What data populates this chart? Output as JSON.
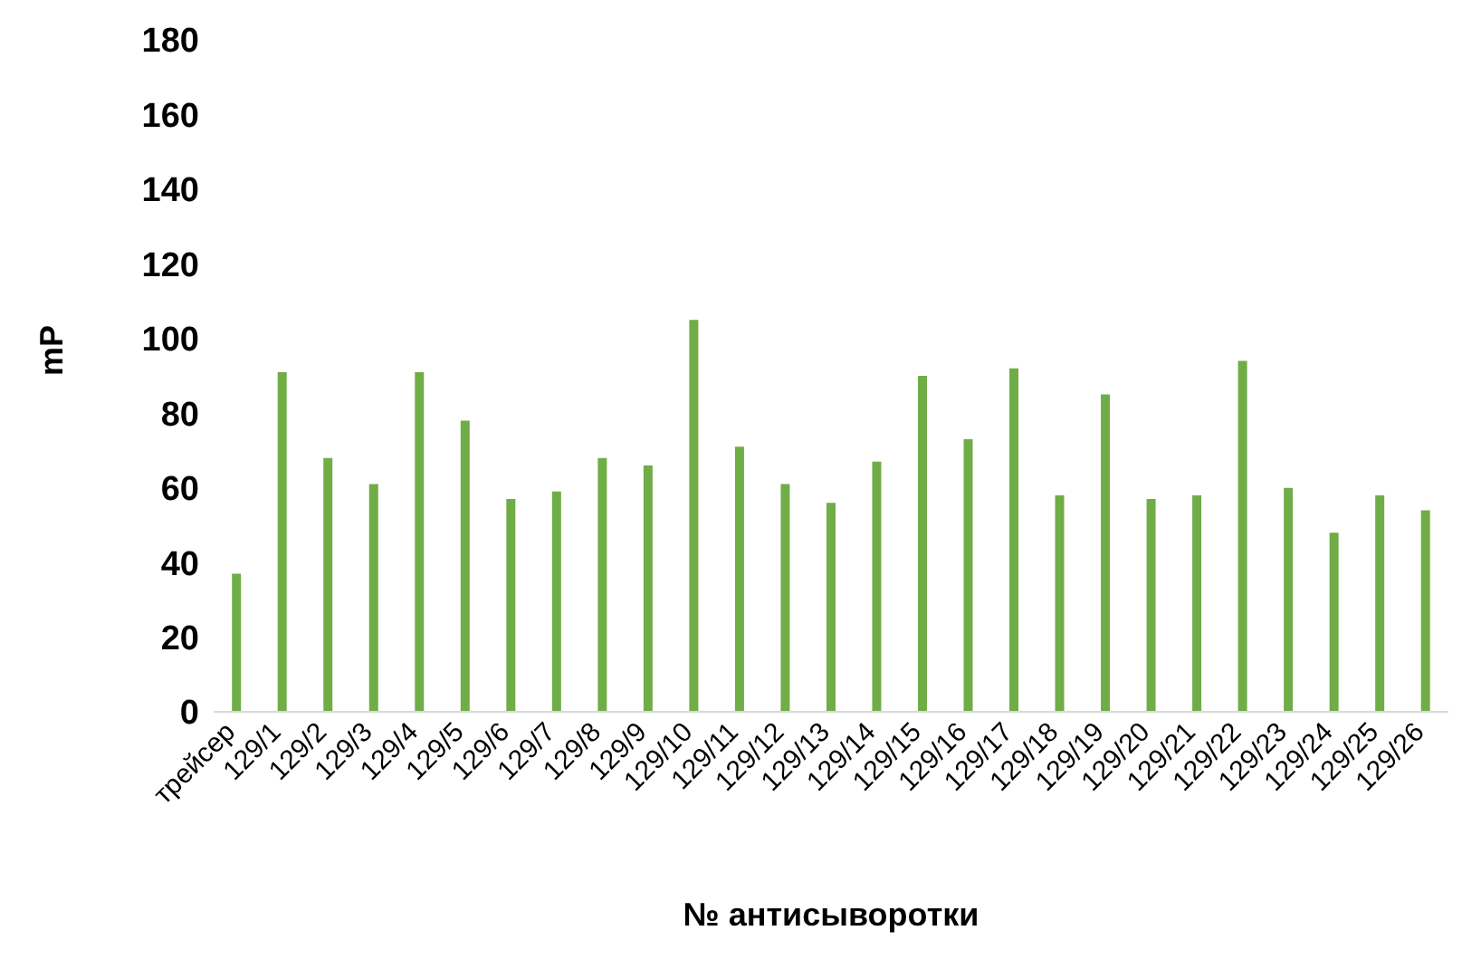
{
  "chart_data": {
    "type": "bar",
    "xlabel": "№ антисыворотки",
    "ylabel": "mP",
    "categories": [
      "трейсер",
      "129/1",
      "129/2",
      "129/3",
      "129/4",
      "129/5",
      "129/6",
      "129/7",
      "129/8",
      "129/9",
      "129/10",
      "129/11",
      "129/12",
      "129/13",
      "129/14",
      "129/15",
      "129/16",
      "129/17",
      "129/18",
      "129/19",
      "129/20",
      "129/21",
      "129/22",
      "129/23",
      "129/24",
      "129/25",
      "129/26"
    ],
    "values": [
      37,
      91,
      68,
      61,
      91,
      78,
      57,
      59,
      68,
      66,
      105,
      71,
      61,
      56,
      67,
      90,
      73,
      92,
      58,
      85,
      57,
      58,
      94,
      60,
      48,
      58,
      54
    ],
    "color": "#70ad47",
    "ylim": [
      0,
      180
    ],
    "yticks": [
      0,
      20,
      40,
      60,
      80,
      100,
      120,
      140,
      160,
      180
    ],
    "grid": false,
    "legend": false
  }
}
